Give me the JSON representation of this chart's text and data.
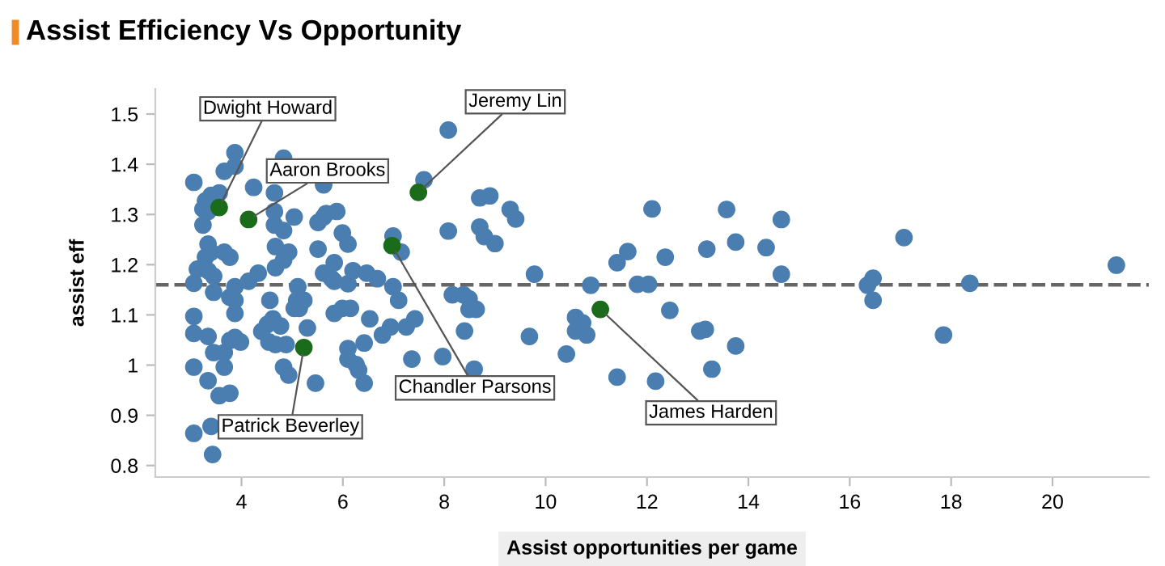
{
  "chart_data": {
    "type": "scatter",
    "title": "Assist Efficiency Vs Opportunity",
    "xlabel": "Assist opportunities per game",
    "ylabel": "assist eff",
    "xlim": [
      2.3,
      21.9
    ],
    "ylim": [
      0.777,
      1.55
    ],
    "xticks": [
      4,
      6,
      8,
      10,
      12,
      14,
      16,
      18,
      20
    ],
    "yticks": [
      0.8,
      0.9,
      1,
      1.1,
      1.2,
      1.3,
      1.4,
      1.5
    ],
    "grid": false,
    "legend": false,
    "marker": "circle",
    "ref_lines": [
      {
        "axis": "y",
        "value": 1.16,
        "line_style": "dashed",
        "color": "#666666"
      }
    ],
    "series": [
      {
        "color": "#4a7eb0",
        "x": [
          3.06,
          3.06,
          3.06,
          3.06,
          3.06,
          3.06,
          3.13,
          3.24,
          3.24,
          3.29,
          3.34,
          3.4,
          3.56,
          3.34,
          3.29,
          3.4,
          3.34,
          3.45,
          3.45,
          3.34,
          3.34,
          3.45,
          3.66,
          3.66,
          3.56,
          3.77,
          3.43,
          3.4,
          3.66,
          3.87,
          3.87,
          3.66,
          3.77,
          3.87,
          3.77,
          3.87,
          3.87,
          3.77,
          3.87,
          3.98,
          4.14,
          4.24,
          4.33,
          4.4,
          4.51,
          4.62,
          4.54,
          4.67,
          4.56,
          4.65,
          4.65,
          4.65,
          4.83,
          4.67,
          4.83,
          4.67,
          4.83,
          4.93,
          5.04,
          4.77,
          4.88,
          4.83,
          4.93,
          5.11,
          5.09,
          5.04,
          5.14,
          5.23,
          5.3,
          5.46,
          5.62,
          5.51,
          5.62,
          5.67,
          5.88,
          5.99,
          5.51,
          5.62,
          5.78,
          5.83,
          5.83,
          6.1,
          6.1,
          6.2,
          6.47,
          6.68,
          5.83,
          5.99,
          6.15,
          6.1,
          6.1,
          6.26,
          6.31,
          6.42,
          6.42,
          6.53,
          6.78,
          6.94,
          6.99,
          7.15,
          6.99,
          7.1,
          7.36,
          7.42,
          7.25,
          8.08,
          7.6,
          8.7,
          8.9,
          9.3,
          9.41,
          8.08,
          8.7,
          8.79,
          9.0,
          9.78,
          8.16,
          8.38,
          8.49,
          8.49,
          8.63,
          8.4,
          7.97,
          8.59,
          9.68,
          10.41,
          10.59,
          10.59,
          10.73,
          10.81,
          10.89,
          11.41,
          11.62,
          11.41,
          11.81,
          12.03,
          12.1,
          12.36,
          12.45,
          12.17,
          13.04,
          13.15,
          13.28,
          13.18,
          13.57,
          13.75,
          13.75,
          14.35,
          14.65,
          14.65,
          16.35,
          16.46,
          16.46,
          17.07,
          17.85,
          18.37,
          21.26
        ],
        "values": [
          1.364,
          1.097,
          1.063,
          0.996,
          0.864,
          1.163,
          1.191,
          1.311,
          1.279,
          1.327,
          1.306,
          1.338,
          1.343,
          1.241,
          1.215,
          1.225,
          1.188,
          1.177,
          1.145,
          1.057,
          0.969,
          1.025,
          1.025,
          0.996,
          0.939,
          0.944,
          0.822,
          0.878,
          1.386,
          1.396,
          1.423,
          1.225,
          1.215,
          1.156,
          1.135,
          1.129,
          1.103,
          1.049,
          1.055,
          1.046,
          1.167,
          1.354,
          1.183,
          1.067,
          1.081,
          1.092,
          1.046,
          1.041,
          1.129,
          1.343,
          1.306,
          1.279,
          1.268,
          1.236,
          1.412,
          1.194,
          1.209,
          1.225,
          1.295,
          1.078,
          1.041,
          0.996,
          0.98,
          1.156,
          1.129,
          1.113,
          1.113,
          1.129,
          1.074,
          0.964,
          1.359,
          1.284,
          1.295,
          1.302,
          1.306,
          1.263,
          1.231,
          1.183,
          1.172,
          1.204,
          1.167,
          1.162,
          1.241,
          1.188,
          1.183,
          1.172,
          1.103,
          1.113,
          1.113,
          1.033,
          1.012,
          1.001,
          0.99,
          0.964,
          1.044,
          1.092,
          1.06,
          1.076,
          1.257,
          1.225,
          1.156,
          1.129,
          1.012,
          1.092,
          1.076,
          1.468,
          1.369,
          1.333,
          1.337,
          1.31,
          1.291,
          1.267,
          1.275,
          1.256,
          1.242,
          1.181,
          1.14,
          1.14,
          1.132,
          1.111,
          1.111,
          1.068,
          1.017,
          0.992,
          1.057,
          1.022,
          1.095,
          1.068,
          1.084,
          1.06,
          1.159,
          0.976,
          1.226,
          1.204,
          1.161,
          1.161,
          1.311,
          1.215,
          1.109,
          0.968,
          1.068,
          1.071,
          0.992,
          1.231,
          1.31,
          1.245,
          1.038,
          1.234,
          1.29,
          1.181,
          1.159,
          1.173,
          1.129,
          1.254,
          1.06,
          1.163,
          1.199
        ]
      },
      {
        "color": "#1a6b1a",
        "x": [
          3.56,
          4.14,
          7.49,
          6.97,
          5.23,
          11.08
        ],
        "values": [
          1.314,
          1.29,
          1.344,
          1.238,
          1.035,
          1.111
        ]
      }
    ],
    "annotations": [
      {
        "text": "Dwight Howard",
        "x": 3.56,
        "y": 1.314
      },
      {
        "text": "Aaron Brooks",
        "x": 4.14,
        "y": 1.29
      },
      {
        "text": "Jeremy Lin",
        "x": 7.49,
        "y": 1.344
      },
      {
        "text": "Chandler Parsons",
        "x": 6.97,
        "y": 1.238
      },
      {
        "text": "Patrick Beverley",
        "x": 5.23,
        "y": 1.035
      },
      {
        "text": "James Harden",
        "x": 11.08,
        "y": 1.111
      }
    ]
  }
}
